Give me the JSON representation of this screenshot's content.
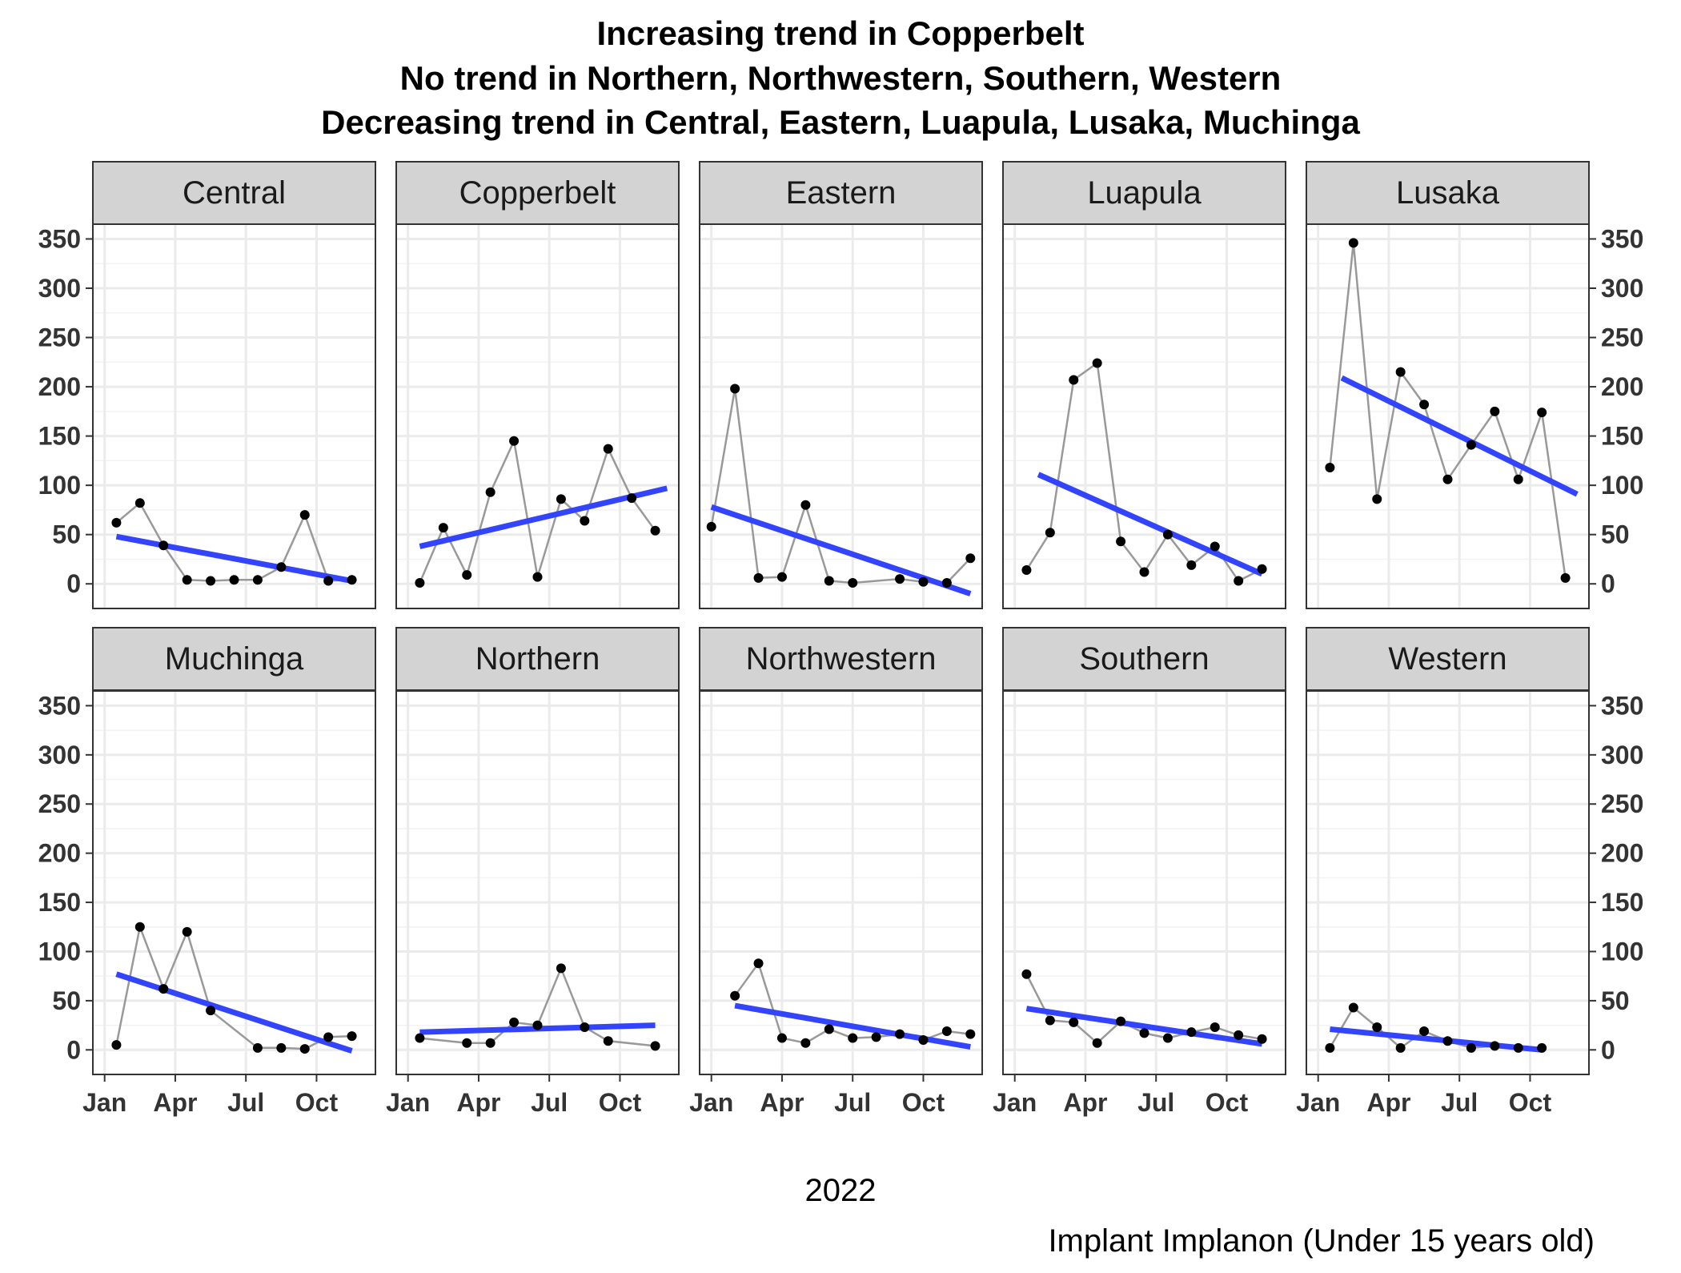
{
  "chart_data": {
    "type": "line",
    "title_lines": [
      "Increasing trend in Copperbelt",
      "No trend in Northern, Northwestern, Southern, Western",
      "Decreasing trend in Central, Eastern, Luapula, Lusaka, Muchinga"
    ],
    "xlabel": "2022",
    "caption": "Implant Implanon (Under 15 years old)",
    "x_ticks": [
      "Jan",
      "Apr",
      "Jul",
      "Oct"
    ],
    "y_ticks": [
      0,
      50,
      100,
      150,
      200,
      250,
      300,
      350
    ],
    "ylim": [
      -25,
      365
    ],
    "grid": true,
    "colors": {
      "series_line": "#999999",
      "points": "#000000",
      "trend": "#3344ff",
      "strip": "#d3d3d3"
    },
    "panels": [
      {
        "name": "Central",
        "points": [
          [
            0.5,
            62
          ],
          [
            1.5,
            82
          ],
          [
            2.5,
            39
          ],
          [
            3.5,
            4
          ],
          [
            4.5,
            3
          ],
          [
            5.5,
            4
          ],
          [
            6.5,
            4
          ],
          [
            7.5,
            17
          ],
          [
            8.5,
            70
          ],
          [
            9.5,
            3
          ],
          [
            10.5,
            4
          ]
        ],
        "trend": [
          [
            0.5,
            48
          ],
          [
            10.5,
            3
          ]
        ]
      },
      {
        "name": "Copperbelt",
        "points": [
          [
            0.5,
            1
          ],
          [
            1.5,
            57
          ],
          [
            2.5,
            9
          ],
          [
            3.5,
            93
          ],
          [
            4.5,
            145
          ],
          [
            5.5,
            7
          ],
          [
            6.5,
            86
          ],
          [
            7.5,
            64
          ],
          [
            8.5,
            137
          ],
          [
            9.5,
            87
          ],
          [
            10.5,
            54
          ]
        ],
        "trend": [
          [
            0.5,
            38
          ],
          [
            11.0,
            97
          ]
        ]
      },
      {
        "name": "Eastern",
        "points": [
          [
            0.0,
            58
          ],
          [
            1.0,
            198
          ],
          [
            2.0,
            6
          ],
          [
            3.0,
            7
          ],
          [
            4.0,
            80
          ],
          [
            5.0,
            3
          ],
          [
            6.0,
            1
          ],
          [
            8.0,
            5
          ],
          [
            9.0,
            2
          ],
          [
            10.0,
            1
          ],
          [
            11.0,
            26
          ]
        ],
        "trend": [
          [
            0.0,
            78
          ],
          [
            11.0,
            -10
          ]
        ]
      },
      {
        "name": "Luapula",
        "points": [
          [
            0.5,
            14
          ],
          [
            1.5,
            52
          ],
          [
            2.5,
            207
          ],
          [
            3.5,
            224
          ],
          [
            4.5,
            43
          ],
          [
            5.5,
            12
          ],
          [
            6.5,
            50
          ],
          [
            7.5,
            19
          ],
          [
            8.5,
            38
          ],
          [
            9.5,
            3
          ],
          [
            10.5,
            15
          ]
        ],
        "trend": [
          [
            1.0,
            111
          ],
          [
            10.5,
            10
          ]
        ]
      },
      {
        "name": "Lusaka",
        "points": [
          [
            0.5,
            118
          ],
          [
            1.5,
            346
          ],
          [
            2.5,
            86
          ],
          [
            3.5,
            215
          ],
          [
            4.5,
            182
          ],
          [
            5.5,
            106
          ],
          [
            6.5,
            141
          ],
          [
            7.5,
            175
          ],
          [
            8.5,
            106
          ],
          [
            9.5,
            174
          ],
          [
            10.5,
            6
          ]
        ],
        "trend": [
          [
            1.0,
            209
          ],
          [
            11.0,
            91
          ]
        ]
      },
      {
        "name": "Muchinga",
        "points": [
          [
            0.5,
            5
          ],
          [
            1.5,
            125
          ],
          [
            2.5,
            62
          ],
          [
            3.5,
            120
          ],
          [
            4.5,
            40
          ],
          [
            6.5,
            2
          ],
          [
            7.5,
            2
          ],
          [
            8.5,
            1
          ],
          [
            9.5,
            13
          ],
          [
            10.5,
            14
          ]
        ],
        "trend": [
          [
            0.5,
            77
          ],
          [
            10.5,
            -1
          ]
        ]
      },
      {
        "name": "Northern",
        "points": [
          [
            0.5,
            12
          ],
          [
            2.5,
            7
          ],
          [
            3.5,
            7
          ],
          [
            4.5,
            28
          ],
          [
            5.5,
            25
          ],
          [
            6.5,
            83
          ],
          [
            7.5,
            23
          ],
          [
            8.5,
            9
          ],
          [
            10.5,
            4
          ]
        ],
        "trend": [
          [
            0.5,
            18
          ],
          [
            10.5,
            25
          ]
        ]
      },
      {
        "name": "Northwestern",
        "points": [
          [
            1.0,
            55
          ],
          [
            2.0,
            88
          ],
          [
            3.0,
            12
          ],
          [
            4.0,
            7
          ],
          [
            5.0,
            21
          ],
          [
            6.0,
            12
          ],
          [
            7.0,
            13
          ],
          [
            8.0,
            16
          ],
          [
            9.0,
            10
          ],
          [
            10.0,
            19
          ],
          [
            11.0,
            16
          ]
        ],
        "trend": [
          [
            1.0,
            45
          ],
          [
            11.0,
            3
          ]
        ]
      },
      {
        "name": "Southern",
        "points": [
          [
            0.5,
            77
          ],
          [
            1.5,
            30
          ],
          [
            2.5,
            28
          ],
          [
            3.5,
            7
          ],
          [
            4.5,
            29
          ],
          [
            5.5,
            17
          ],
          [
            6.5,
            12
          ],
          [
            7.5,
            18
          ],
          [
            8.5,
            23
          ],
          [
            9.5,
            15
          ],
          [
            10.5,
            11
          ]
        ],
        "trend": [
          [
            0.5,
            42
          ],
          [
            10.5,
            6
          ]
        ]
      },
      {
        "name": "Western",
        "points": [
          [
            0.5,
            2
          ],
          [
            1.5,
            43
          ],
          [
            2.5,
            23
          ],
          [
            3.5,
            2
          ],
          [
            4.5,
            19
          ],
          [
            5.5,
            9
          ],
          [
            6.5,
            2
          ],
          [
            7.5,
            4
          ],
          [
            8.5,
            2
          ],
          [
            9.5,
            2
          ]
        ],
        "trend": [
          [
            0.5,
            21
          ],
          [
            9.5,
            0
          ]
        ]
      }
    ]
  }
}
